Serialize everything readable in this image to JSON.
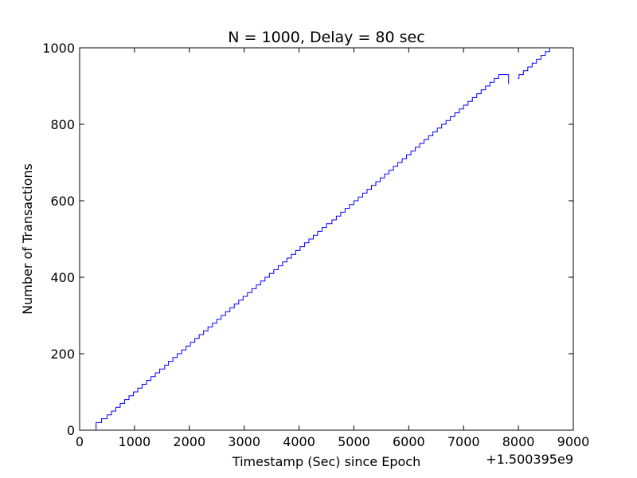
{
  "chart_data": {
    "type": "line",
    "title": "N = 1000, Delay = 80 sec",
    "xlabel": "Timestamp (Sec) since Epoch",
    "ylabel": "Number of Transactions",
    "x_offset_label": "+1.500395e9",
    "xlim": [
      0,
      9000
    ],
    "ylim": [
      0,
      1000
    ],
    "x_ticks": [
      0,
      1000,
      2000,
      3000,
      4000,
      5000,
      6000,
      7000,
      8000,
      9000
    ],
    "y_ticks": [
      0,
      200,
      400,
      600,
      800,
      1000
    ],
    "grid": false,
    "series": [
      {
        "color": "#0000ff",
        "step": "post",
        "segments": [
          {
            "x": [
              280,
              300,
              400,
              500,
              580,
              660,
              740,
              820,
              900,
              980,
              1060,
              1140,
              1220,
              1300,
              1380,
              1460,
              1550,
              1620,
              1700,
              1780,
              1860,
              1940,
              2020,
              2100,
              2180,
              2260,
              2340,
              2420,
              2500,
              2580,
              2660,
              2740,
              2820,
              2900,
              2980,
              3060,
              3140,
              3220,
              3300,
              3380,
              3460,
              3540,
              3620,
              3700,
              3780,
              3860,
              3940,
              4020,
              4100,
              4180,
              4260,
              4340,
              4420,
              4500,
              4600,
              4680,
              4760,
              4840,
              4920,
              5000,
              5080,
              5160,
              5240,
              5320,
              5400,
              5480,
              5560,
              5640,
              5720,
              5800,
              5880,
              5960,
              6040,
              6120,
              6200,
              6280,
              6360,
              6440,
              6520,
              6600,
              6680,
              6760,
              6840,
              6920,
              7000,
              7080,
              7160,
              7240,
              7320,
              7400,
              7480,
              7560,
              7640,
              7820
            ],
            "y": [
              0,
              20,
              30,
              40,
              50,
              60,
              70,
              80,
              90,
              100,
              110,
              120,
              130,
              140,
              150,
              160,
              170,
              180,
              190,
              200,
              210,
              220,
              230,
              240,
              250,
              260,
              270,
              280,
              290,
              300,
              310,
              320,
              330,
              340,
              350,
              360,
              370,
              380,
              390,
              400,
              410,
              420,
              430,
              440,
              450,
              460,
              470,
              480,
              490,
              500,
              510,
              520,
              530,
              540,
              550,
              560,
              570,
              580,
              590,
              600,
              610,
              620,
              630,
              640,
              650,
              660,
              670,
              680,
              690,
              700,
              710,
              720,
              730,
              740,
              750,
              760,
              770,
              780,
              790,
              800,
              810,
              820,
              830,
              840,
              850,
              860,
              870,
              880,
              890,
              900,
              910,
              920,
              930,
              905
            ]
          },
          {
            "x": [
              7990,
              8010,
              8090,
              8170,
              8250,
              8330,
              8410,
              8490,
              8570
            ],
            "y": [
              920,
              930,
              940,
              950,
              960,
              970,
              980,
              990,
              1000
            ]
          }
        ]
      }
    ]
  }
}
